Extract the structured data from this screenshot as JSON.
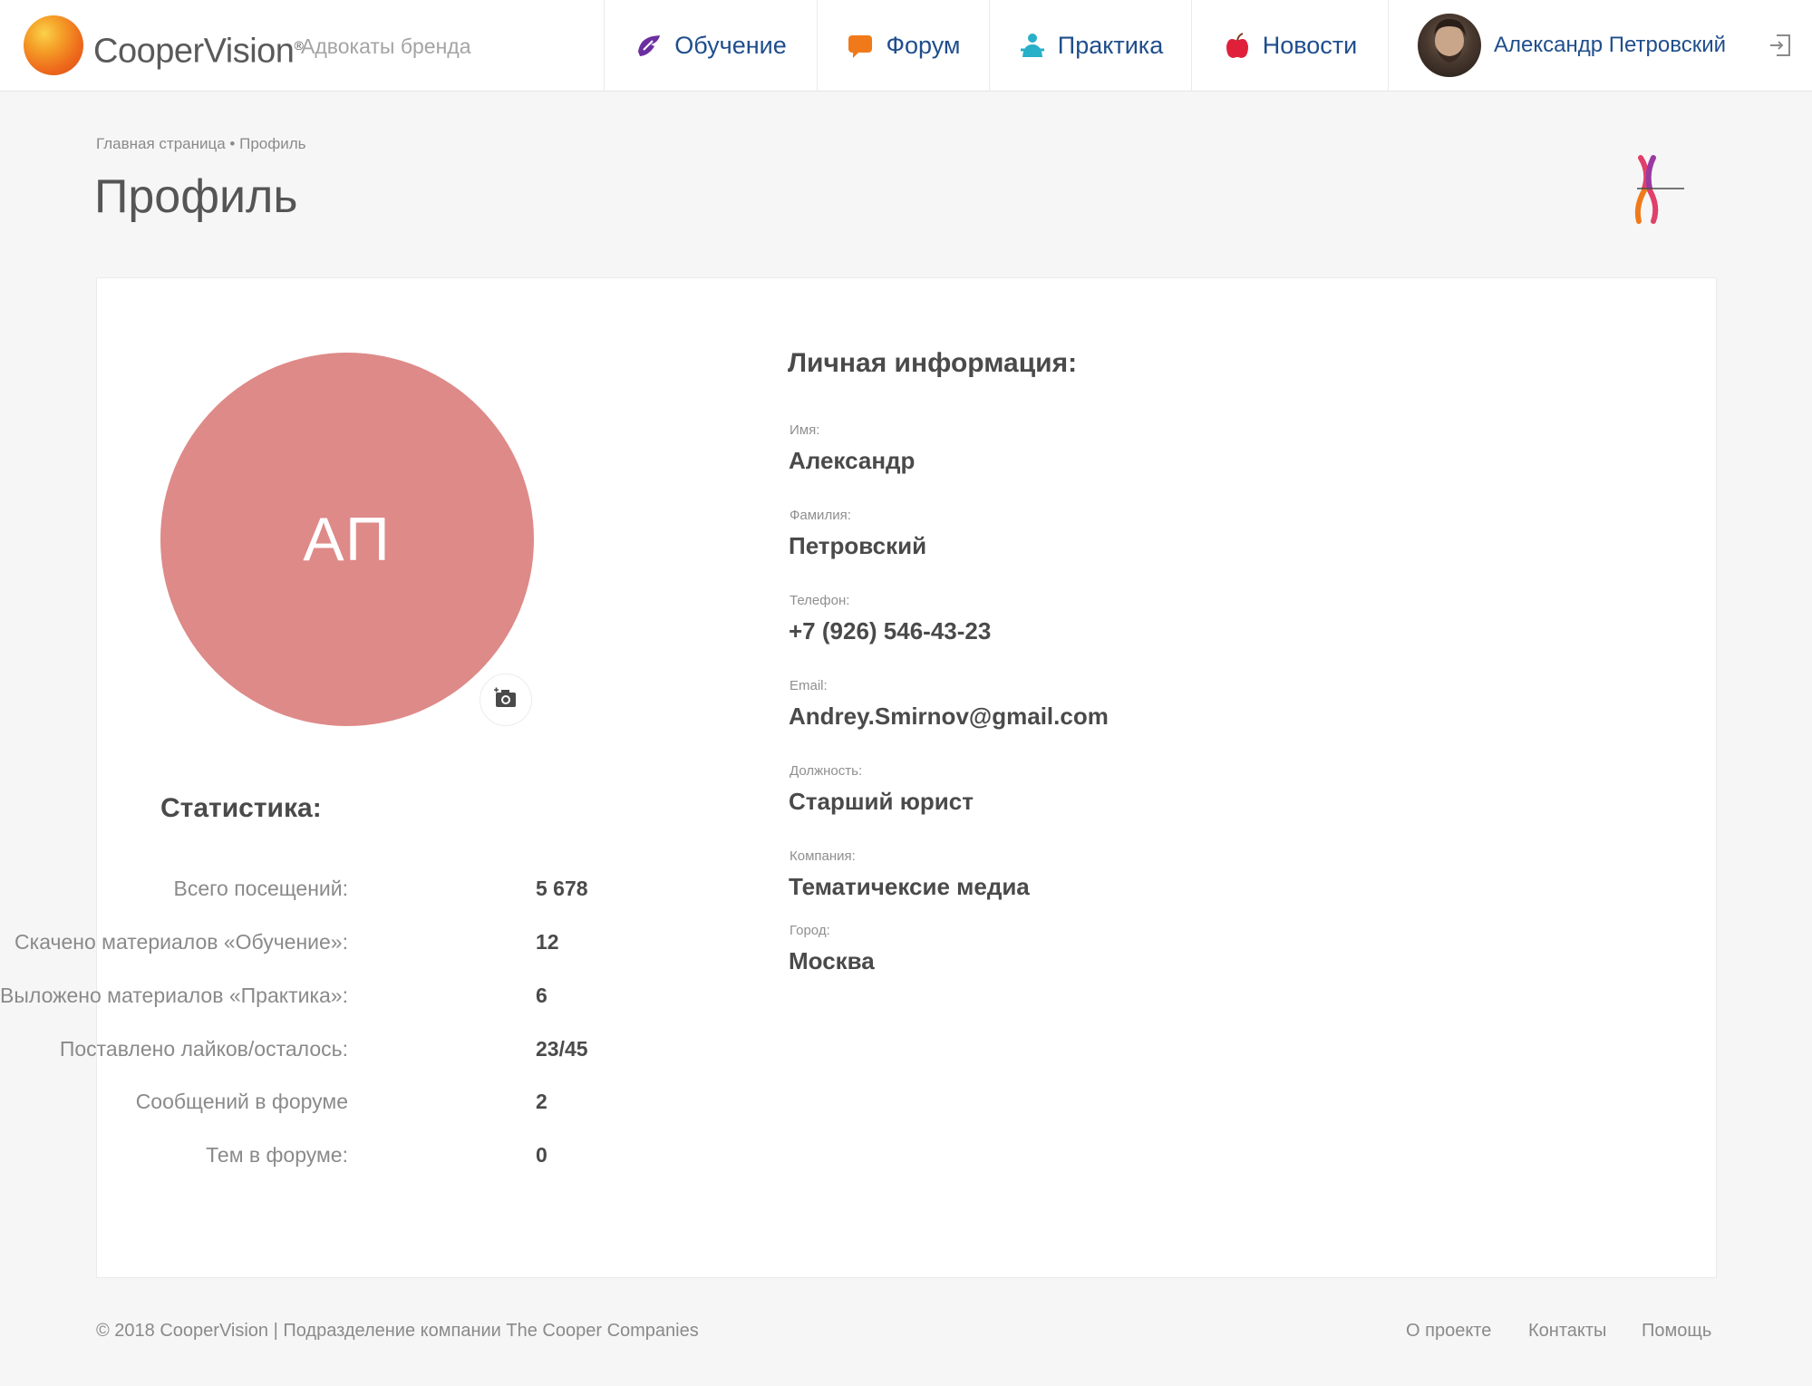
{
  "header": {
    "brand": "CooperVision",
    "brand_mark": "®",
    "subtitle": "Адвокаты бренда",
    "nav": [
      {
        "label": "Обучение",
        "icon": "graduation-cap-icon",
        "color": "#6b2fa0"
      },
      {
        "label": "Форум",
        "icon": "speech-bubble-icon",
        "color": "#f07a1a"
      },
      {
        "label": "Практика",
        "icon": "person-icon",
        "color": "#27b0c8"
      },
      {
        "label": "Новости",
        "icon": "apple-icon",
        "color": "#e0203a"
      }
    ],
    "user": {
      "name": "Александр Петровский",
      "avatar": "user-photo"
    },
    "logout_icon": "logout-icon"
  },
  "breadcrumb": "Главная страница • Профиль",
  "page_title": "Профиль",
  "profile": {
    "initials": "АП",
    "avatar_color": "#de8a88",
    "camera_icon": "camera-icon"
  },
  "stats": {
    "title": "Статистика:",
    "rows": [
      {
        "label": "Всего посещений:",
        "value": "5 678"
      },
      {
        "label": "Скачено материалов «Обучение»:",
        "value": "12"
      },
      {
        "label": "Выложено материалов «Практика»:",
        "value": "6"
      },
      {
        "label": "Поставлено лайков/осталось:",
        "value": "23/45"
      },
      {
        "label": "Сообщений в форуме",
        "value": "2"
      },
      {
        "label": "Тем в форуме:",
        "value": "0"
      }
    ]
  },
  "info": {
    "title": "Личная информация:",
    "fields": [
      {
        "label": "Имя:",
        "value": "Александр"
      },
      {
        "label": "Фамилия:",
        "value": "Петровский"
      },
      {
        "label": "Телефон:",
        "value": "+7 (926) 546-43-23"
      },
      {
        "label": "Email:",
        "value": "Andrey.Smirnov@gmail.com"
      },
      {
        "label": "Должность:",
        "value": "Старший юрист"
      },
      {
        "label": "Компания:",
        "value": "Тематичексие медиа"
      },
      {
        "label": "Город:",
        "value": "Москва"
      }
    ]
  },
  "footer": {
    "copyright": "© 2018 CooperVision | Подразделение компании The Cooper Companies",
    "links": [
      "О проекте",
      "Контакты",
      "Помощь"
    ]
  }
}
